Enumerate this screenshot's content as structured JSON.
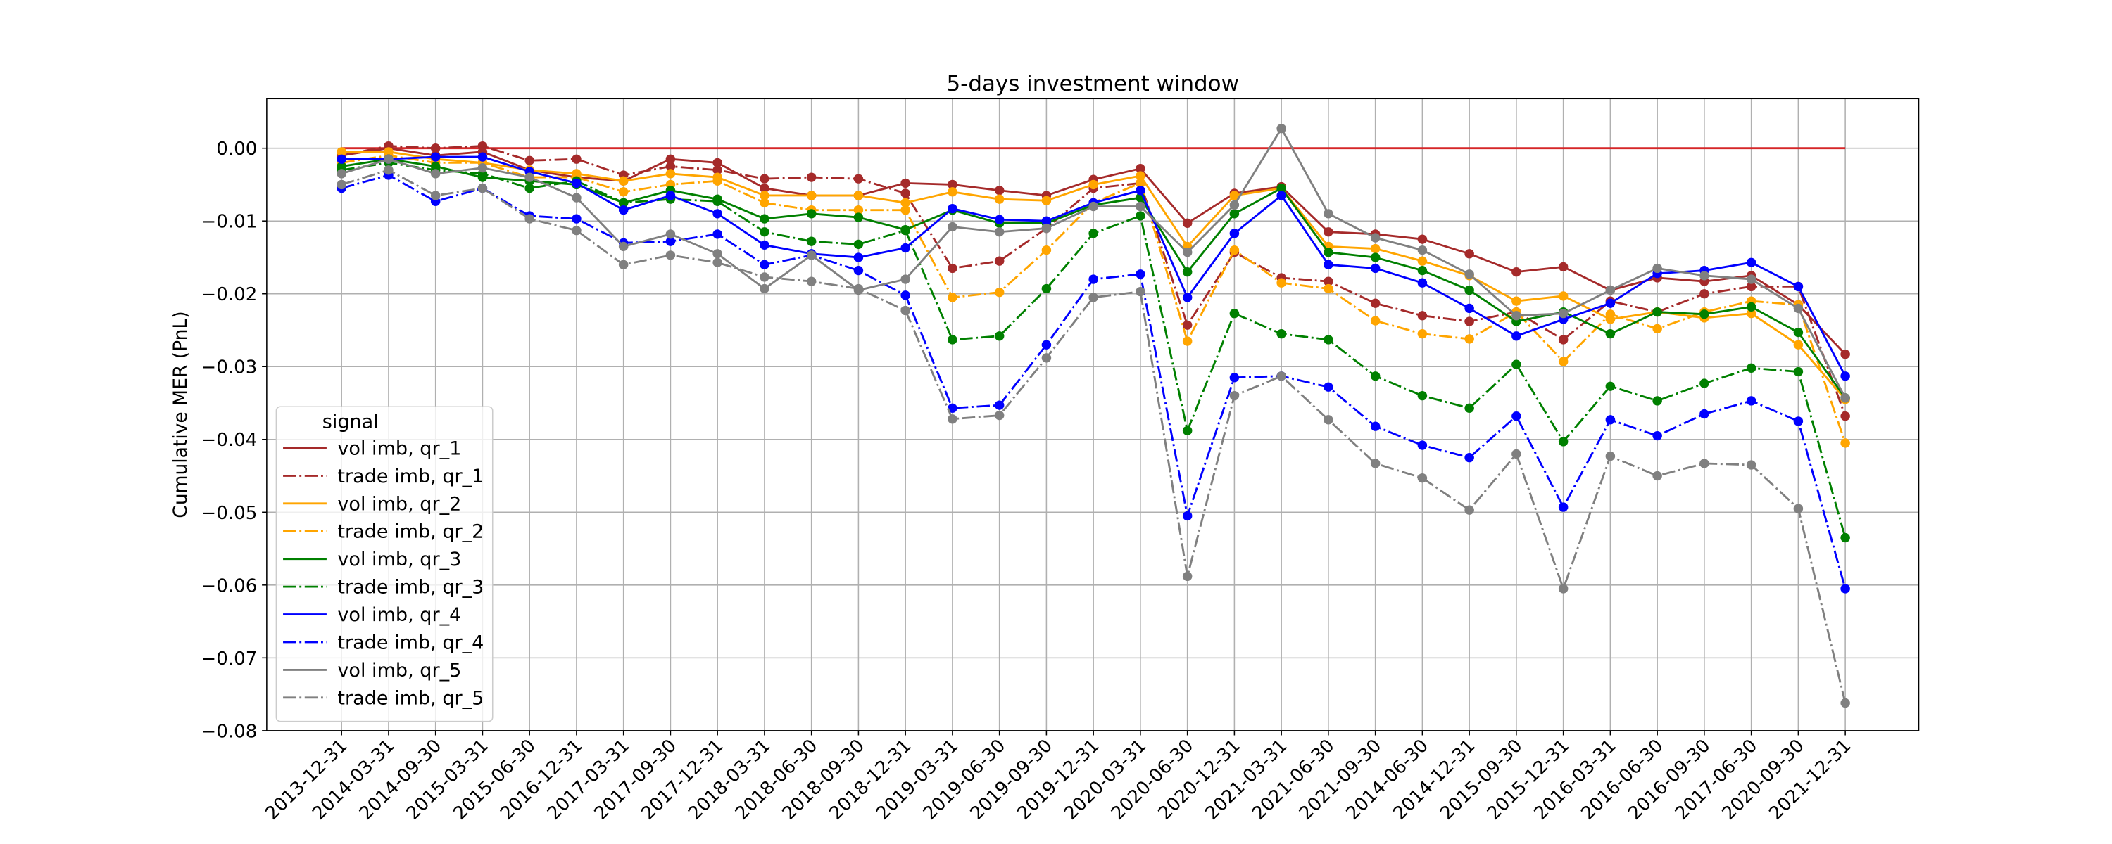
{
  "chart_data": {
    "type": "line",
    "title": "5-days investment window",
    "y_label": "Cumulative MER (PnL)",
    "categories": [
      "2013-12-31",
      "2014-03-31",
      "2014-09-30",
      "2015-03-31",
      "2015-06-30",
      "2016-12-31",
      "2017-03-31",
      "2017-09-30",
      "2017-12-31",
      "2018-03-31",
      "2018-06-30",
      "2018-09-30",
      "2018-12-31",
      "2019-03-31",
      "2019-06-30",
      "2019-09-30",
      "2019-12-31",
      "2020-03-31",
      "2020-06-30",
      "2020-12-31",
      "2021-03-31",
      "2021-06-30",
      "2021-09-30",
      "2014-06-30",
      "2014-12-31",
      "2015-09-30",
      "2015-12-31",
      "2016-03-31",
      "2016-06-30",
      "2016-09-30",
      "2017-06-30",
      "2020-09-30",
      "2021-12-31"
    ],
    "ylim": [
      -0.08,
      0.0068
    ],
    "yticks": [
      {
        "value": 0,
        "label": "0.00"
      },
      {
        "value": -0.01,
        "label": "−0.01"
      },
      {
        "value": -0.02,
        "label": "−0.02"
      },
      {
        "value": -0.03,
        "label": "−0.03"
      },
      {
        "value": -0.04,
        "label": "−0.04"
      },
      {
        "value": -0.05,
        "label": "−0.05"
      },
      {
        "value": -0.06,
        "label": "−0.06"
      },
      {
        "value": -0.07,
        "label": "−0.07"
      },
      {
        "value": -0.08,
        "label": "−0.08"
      }
    ],
    "grid": true,
    "hline": {
      "value": 0,
      "color": "#d62728"
    },
    "legend": {
      "title": "signal",
      "loc": "lower left"
    },
    "series": [
      {
        "name": "vol imb, qr_1",
        "color": "#a52a2a",
        "linestyle": "solid",
        "values": [
          -0.001,
          0.0,
          -0.001,
          -0.0005,
          -0.003,
          -0.004,
          -0.0045,
          -0.0015,
          -0.002,
          -0.0055,
          -0.0065,
          -0.0065,
          -0.0048,
          -0.005,
          -0.0058,
          -0.0065,
          -0.0043,
          -0.0028,
          -0.0103,
          -0.0062,
          -0.0053,
          -0.0115,
          -0.0118,
          -0.0125,
          -0.0145,
          -0.017,
          -0.0163,
          -0.0195,
          -0.0178,
          -0.0183,
          -0.0175,
          -0.0215,
          -0.0283
        ]
      },
      {
        "name": "trade imb, qr_1",
        "color": "#a52a2a",
        "linestyle": "dashdot",
        "values": [
          -0.001,
          0.0003,
          0.0,
          0.0003,
          -0.0017,
          -0.0015,
          -0.0037,
          -0.0025,
          -0.003,
          -0.0042,
          -0.004,
          -0.0042,
          -0.0062,
          -0.0165,
          -0.0155,
          -0.011,
          -0.0055,
          -0.0048,
          -0.0243,
          -0.0143,
          -0.0178,
          -0.0183,
          -0.0213,
          -0.023,
          -0.0238,
          -0.0225,
          -0.0263,
          -0.021,
          -0.0225,
          -0.02,
          -0.019,
          -0.019,
          -0.0368
        ]
      },
      {
        "name": "vol imb, qr_2",
        "color": "#ffa500",
        "linestyle": "solid",
        "values": [
          -0.0005,
          -0.0005,
          -0.0015,
          -0.002,
          -0.003,
          -0.0035,
          -0.0045,
          -0.0035,
          -0.004,
          -0.0065,
          -0.0065,
          -0.0065,
          -0.0075,
          -0.006,
          -0.007,
          -0.0072,
          -0.005,
          -0.0038,
          -0.0135,
          -0.0065,
          -0.0055,
          -0.0135,
          -0.0138,
          -0.0155,
          -0.0175,
          -0.021,
          -0.0203,
          -0.0235,
          -0.0225,
          -0.0233,
          -0.0227,
          -0.027,
          -0.0345
        ]
      },
      {
        "name": "trade imb, qr_2",
        "color": "#ffa500",
        "linestyle": "dashdot",
        "values": [
          -0.002,
          -0.001,
          -0.002,
          -0.002,
          -0.004,
          -0.004,
          -0.006,
          -0.005,
          -0.0045,
          -0.0075,
          -0.0085,
          -0.0085,
          -0.0085,
          -0.0205,
          -0.0198,
          -0.014,
          -0.0075,
          -0.0048,
          -0.0265,
          -0.014,
          -0.0185,
          -0.0193,
          -0.0237,
          -0.0255,
          -0.0262,
          -0.0225,
          -0.0293,
          -0.0228,
          -0.0248,
          -0.0225,
          -0.021,
          -0.0215,
          -0.0405
        ]
      },
      {
        "name": "vol imb, qr_3",
        "color": "#008000",
        "linestyle": "solid",
        "values": [
          -0.0025,
          -0.0015,
          -0.0025,
          -0.004,
          -0.0045,
          -0.005,
          -0.0075,
          -0.0058,
          -0.007,
          -0.0097,
          -0.009,
          -0.0095,
          -0.0112,
          -0.0085,
          -0.0103,
          -0.0103,
          -0.0078,
          -0.0068,
          -0.017,
          -0.009,
          -0.0055,
          -0.0143,
          -0.015,
          -0.0168,
          -0.0195,
          -0.0238,
          -0.0225,
          -0.0255,
          -0.0225,
          -0.0228,
          -0.0218,
          -0.0253,
          -0.0343
        ]
      },
      {
        "name": "trade imb, qr_3",
        "color": "#008000",
        "linestyle": "dashdot",
        "values": [
          -0.003,
          -0.002,
          -0.003,
          -0.0035,
          -0.0055,
          -0.0045,
          -0.0075,
          -0.007,
          -0.0073,
          -0.0115,
          -0.0128,
          -0.0132,
          -0.0113,
          -0.0263,
          -0.0258,
          -0.0193,
          -0.0117,
          -0.0093,
          -0.0388,
          -0.0227,
          -0.0255,
          -0.0263,
          -0.0313,
          -0.034,
          -0.0357,
          -0.0297,
          -0.0403,
          -0.0327,
          -0.0347,
          -0.0323,
          -0.0302,
          -0.0307,
          -0.0535
        ]
      },
      {
        "name": "vol imb, qr_4",
        "color": "#0000ff",
        "linestyle": "solid",
        "values": [
          -0.0015,
          -0.0015,
          -0.0012,
          -0.0012,
          -0.0032,
          -0.0048,
          -0.0085,
          -0.0065,
          -0.009,
          -0.0133,
          -0.0145,
          -0.015,
          -0.0137,
          -0.0083,
          -0.0098,
          -0.01,
          -0.0075,
          -0.0058,
          -0.0205,
          -0.0117,
          -0.0065,
          -0.016,
          -0.0165,
          -0.0185,
          -0.022,
          -0.0258,
          -0.0235,
          -0.0213,
          -0.0172,
          -0.0168,
          -0.0157,
          -0.019,
          -0.0313
        ]
      },
      {
        "name": "trade imb, qr_4",
        "color": "#0000ff",
        "linestyle": "dashdot",
        "values": [
          -0.0055,
          -0.0037,
          -0.0073,
          -0.0055,
          -0.0093,
          -0.0097,
          -0.013,
          -0.0128,
          -0.0118,
          -0.016,
          -0.0147,
          -0.0168,
          -0.0202,
          -0.0357,
          -0.0353,
          -0.027,
          -0.018,
          -0.0173,
          -0.0505,
          -0.0315,
          -0.0313,
          -0.0328,
          -0.0382,
          -0.0408,
          -0.0425,
          -0.0368,
          -0.0493,
          -0.0373,
          -0.0395,
          -0.0365,
          -0.0347,
          -0.0375,
          -0.0605
        ]
      },
      {
        "name": "vol imb, qr_5",
        "color": "#808080",
        "linestyle": "solid",
        "values": [
          -0.0035,
          -0.0015,
          -0.0035,
          -0.0027,
          -0.004,
          -0.0068,
          -0.0135,
          -0.0118,
          -0.0145,
          -0.0193,
          -0.0147,
          -0.0195,
          -0.018,
          -0.0108,
          -0.0115,
          -0.011,
          -0.008,
          -0.008,
          -0.0143,
          -0.0078,
          0.0027,
          -0.009,
          -0.0123,
          -0.014,
          -0.0173,
          -0.023,
          -0.0227,
          -0.0195,
          -0.0165,
          -0.0175,
          -0.018,
          -0.022,
          -0.0343
        ]
      },
      {
        "name": "trade imb, qr_5",
        "color": "#808080",
        "linestyle": "dashdot",
        "values": [
          -0.005,
          -0.003,
          -0.0065,
          -0.0055,
          -0.0097,
          -0.0113,
          -0.016,
          -0.0147,
          -0.0157,
          -0.0177,
          -0.0183,
          -0.0193,
          -0.0223,
          -0.0372,
          -0.0367,
          -0.0288,
          -0.0205,
          -0.0197,
          -0.0588,
          -0.034,
          -0.0313,
          -0.0373,
          -0.0433,
          -0.0453,
          -0.0497,
          -0.042,
          -0.0605,
          -0.0423,
          -0.045,
          -0.0433,
          -0.0435,
          -0.0495,
          -0.0762
        ]
      }
    ]
  }
}
